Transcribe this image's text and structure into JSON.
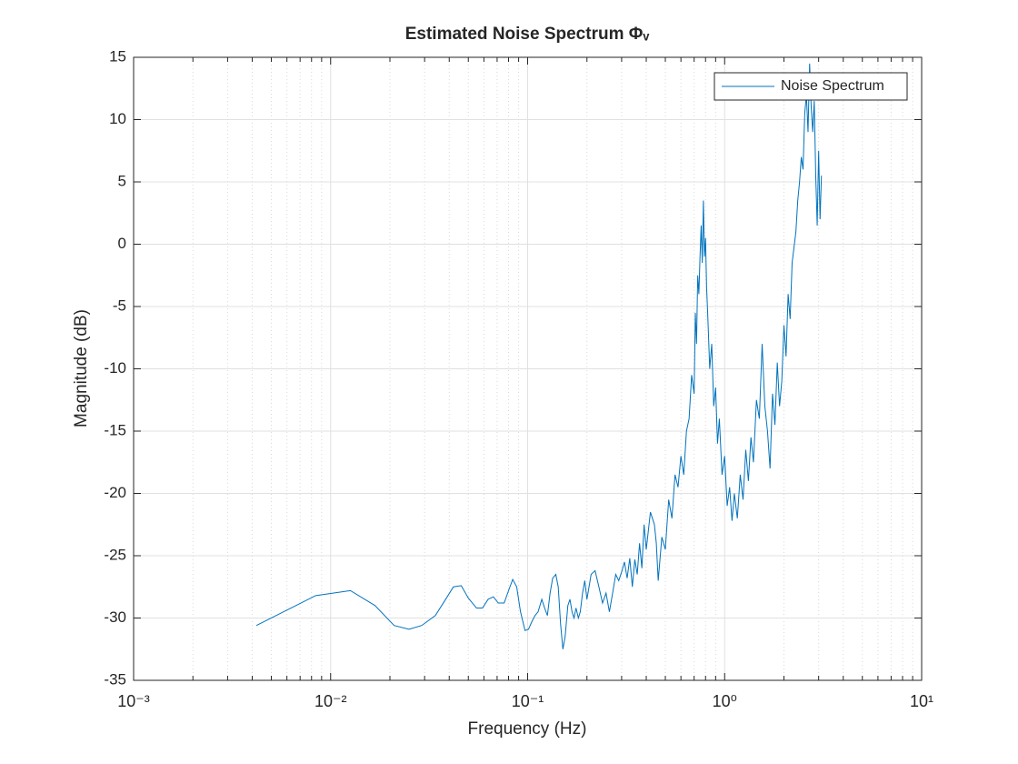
{
  "chart_data": {
    "type": "line",
    "title": "Estimated Noise Spectrum Φᵥ",
    "x_label": "Frequency (Hz)",
    "y_label": "Magnitude (dB)",
    "xscale": "log",
    "grid": true,
    "minor_grid": true,
    "legend": "northeast",
    "xlim": [
      0.001,
      10
    ],
    "xticks": [
      {
        "value": 0.001,
        "label": "10⁻³"
      },
      {
        "value": 0.01,
        "label": "10⁻²"
      },
      {
        "value": 0.1,
        "label": "10⁻¹"
      },
      {
        "value": 1,
        "label": "10⁰"
      },
      {
        "value": 10,
        "label": "10¹"
      }
    ],
    "ylim": [
      -35,
      15
    ],
    "yticks": [
      -35,
      -30,
      -25,
      -20,
      -15,
      -10,
      -5,
      0,
      5,
      10,
      15
    ],
    "x": [
      0.0042,
      0.0084,
      0.0126,
      0.0168,
      0.021,
      0.025,
      0.029,
      0.034,
      0.038,
      0.042,
      0.046,
      0.05,
      0.055,
      0.059,
      0.063,
      0.067,
      0.071,
      0.076,
      0.08,
      0.084,
      0.088,
      0.092,
      0.097,
      0.101,
      0.105,
      0.109,
      0.113,
      0.118,
      0.122,
      0.126,
      0.13,
      0.134,
      0.139,
      0.143,
      0.147,
      0.151,
      0.155,
      0.16,
      0.164,
      0.168,
      0.172,
      0.176,
      0.181,
      0.185,
      0.19,
      0.195,
      0.2,
      0.21,
      0.22,
      0.23,
      0.24,
      0.25,
      0.26,
      0.27,
      0.28,
      0.29,
      0.3,
      0.31,
      0.32,
      0.33,
      0.34,
      0.35,
      0.36,
      0.37,
      0.38,
      0.39,
      0.4,
      0.42,
      0.44,
      0.45,
      0.46,
      0.48,
      0.5,
      0.52,
      0.54,
      0.56,
      0.58,
      0.6,
      0.62,
      0.64,
      0.66,
      0.68,
      0.7,
      0.71,
      0.72,
      0.73,
      0.74,
      0.75,
      0.76,
      0.77,
      0.78,
      0.79,
      0.8,
      0.81,
      0.82,
      0.84,
      0.86,
      0.88,
      0.9,
      0.92,
      0.94,
      0.97,
      1.0,
      1.03,
      1.06,
      1.09,
      1.12,
      1.16,
      1.2,
      1.24,
      1.28,
      1.32,
      1.36,
      1.4,
      1.45,
      1.5,
      1.55,
      1.6,
      1.65,
      1.7,
      1.75,
      1.8,
      1.85,
      1.9,
      1.95,
      2.0,
      2.05,
      2.1,
      2.15,
      2.2,
      2.3,
      2.35,
      2.4,
      2.45,
      2.5,
      2.55,
      2.6,
      2.65,
      2.7,
      2.75,
      2.8,
      2.85,
      2.9,
      2.95,
      3.0,
      3.05,
      3.1
    ],
    "series": [
      {
        "name": "Noise Spectrum",
        "color": "#0072bd",
        "values": [
          -30.6,
          -28.2,
          -27.8,
          -29.0,
          -30.6,
          -30.9,
          -30.6,
          -29.8,
          -28.6,
          -27.5,
          -27.4,
          -28.4,
          -29.2,
          -29.2,
          -28.5,
          -28.3,
          -28.8,
          -28.8,
          -27.8,
          -26.9,
          -27.5,
          -29.5,
          -31.0,
          -30.9,
          -30.3,
          -29.8,
          -29.5,
          -28.5,
          -29.2,
          -29.8,
          -28.0,
          -26.8,
          -26.5,
          -27.5,
          -30.5,
          -32.5,
          -31.5,
          -29.0,
          -28.5,
          -29.5,
          -30.0,
          -29.2,
          -30.0,
          -29.5,
          -28.0,
          -27.0,
          -28.5,
          -26.5,
          -26.2,
          -27.5,
          -28.8,
          -28.0,
          -29.5,
          -28.0,
          -26.5,
          -27.0,
          -26.3,
          -25.5,
          -26.8,
          -25.2,
          -27.5,
          -25.3,
          -26.5,
          -24.0,
          -26.0,
          -22.5,
          -24.5,
          -21.5,
          -22.5,
          -24.0,
          -27.0,
          -23.5,
          -24.5,
          -20.5,
          -22.0,
          -18.5,
          -19.5,
          -17.0,
          -18.5,
          -15.0,
          -14.0,
          -10.5,
          -12.0,
          -5.5,
          -8.0,
          -2.5,
          -4.0,
          -1.0,
          1.5,
          -1.5,
          3.5,
          -1.0,
          0.5,
          -3.5,
          -5.5,
          -10.0,
          -8.0,
          -13.0,
          -11.5,
          -16.0,
          -14.0,
          -18.5,
          -17.0,
          -21.0,
          -19.5,
          -22.2,
          -20.0,
          -22.0,
          -18.5,
          -20.5,
          -16.5,
          -19.0,
          -15.5,
          -17.5,
          -12.5,
          -14.0,
          -8.0,
          -13.0,
          -15.0,
          -18.0,
          -12.0,
          -14.5,
          -9.5,
          -13.0,
          -11.0,
          -6.5,
          -9.0,
          -4.0,
          -6.0,
          -1.5,
          1.0,
          3.5,
          5.0,
          7.0,
          6.0,
          10.5,
          12.0,
          9.0,
          14.5,
          11.0,
          9.0,
          11.5,
          5.5,
          1.5,
          7.5,
          2.0,
          5.5
        ]
      }
    ]
  }
}
